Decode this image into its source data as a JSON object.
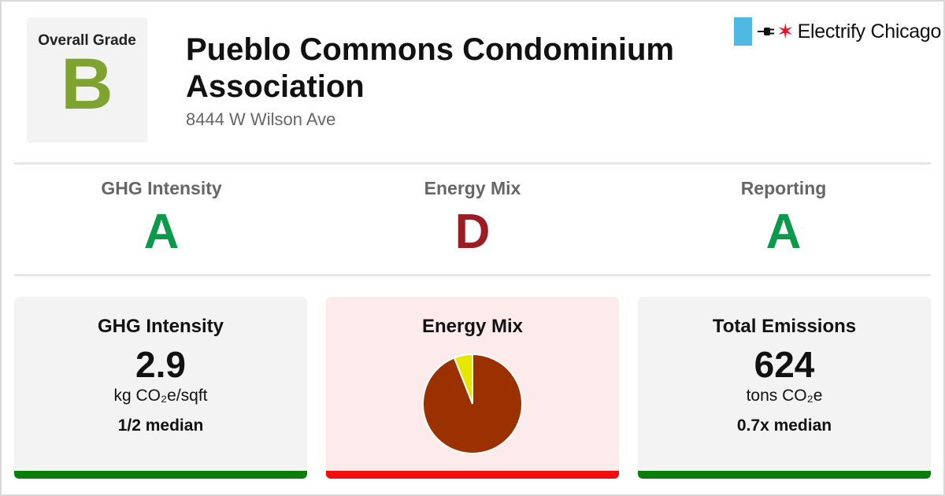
{
  "header": {
    "overall_grade_label": "Overall Grade",
    "overall_grade": "B",
    "overall_grade_color": "#7ea32e",
    "building_name": "Pueblo Commons Condominium Association",
    "address": "8444 W Wilson Ave",
    "brand_name": "Electrify Chicago",
    "brand_icons": [
      "chicago-flag-stripe-icon",
      "plug-icon",
      "red-star-icon"
    ]
  },
  "grades": [
    {
      "label": "GHG Intensity",
      "grade": "A",
      "color": "#0a9a4a"
    },
    {
      "label": "Energy Mix",
      "grade": "D",
      "color": "#9b1c24"
    },
    {
      "label": "Reporting",
      "grade": "A",
      "color": "#0a9a4a"
    }
  ],
  "cards": {
    "ghg": {
      "title": "GHG Intensity",
      "value": "2.9",
      "unit": "kg CO₂e/sqft",
      "median": "1/2 median",
      "background": "#f3f3f3",
      "bar_color": "#0a7d0a"
    },
    "energy_mix": {
      "title": "Energy Mix",
      "background": "#fdebeb",
      "bar_color": "#f40d0d"
    },
    "emissions": {
      "title": "Total Emissions",
      "value": "624",
      "unit": "tons CO₂e",
      "median": "0.7x median",
      "background": "#f3f3f3",
      "bar_color": "#0a7d0a"
    }
  },
  "chart_data": {
    "type": "pie",
    "slices": [
      {
        "share": 0.94,
        "color": "#9b3100"
      },
      {
        "share": 0.06,
        "color": "#e6e600"
      }
    ]
  }
}
